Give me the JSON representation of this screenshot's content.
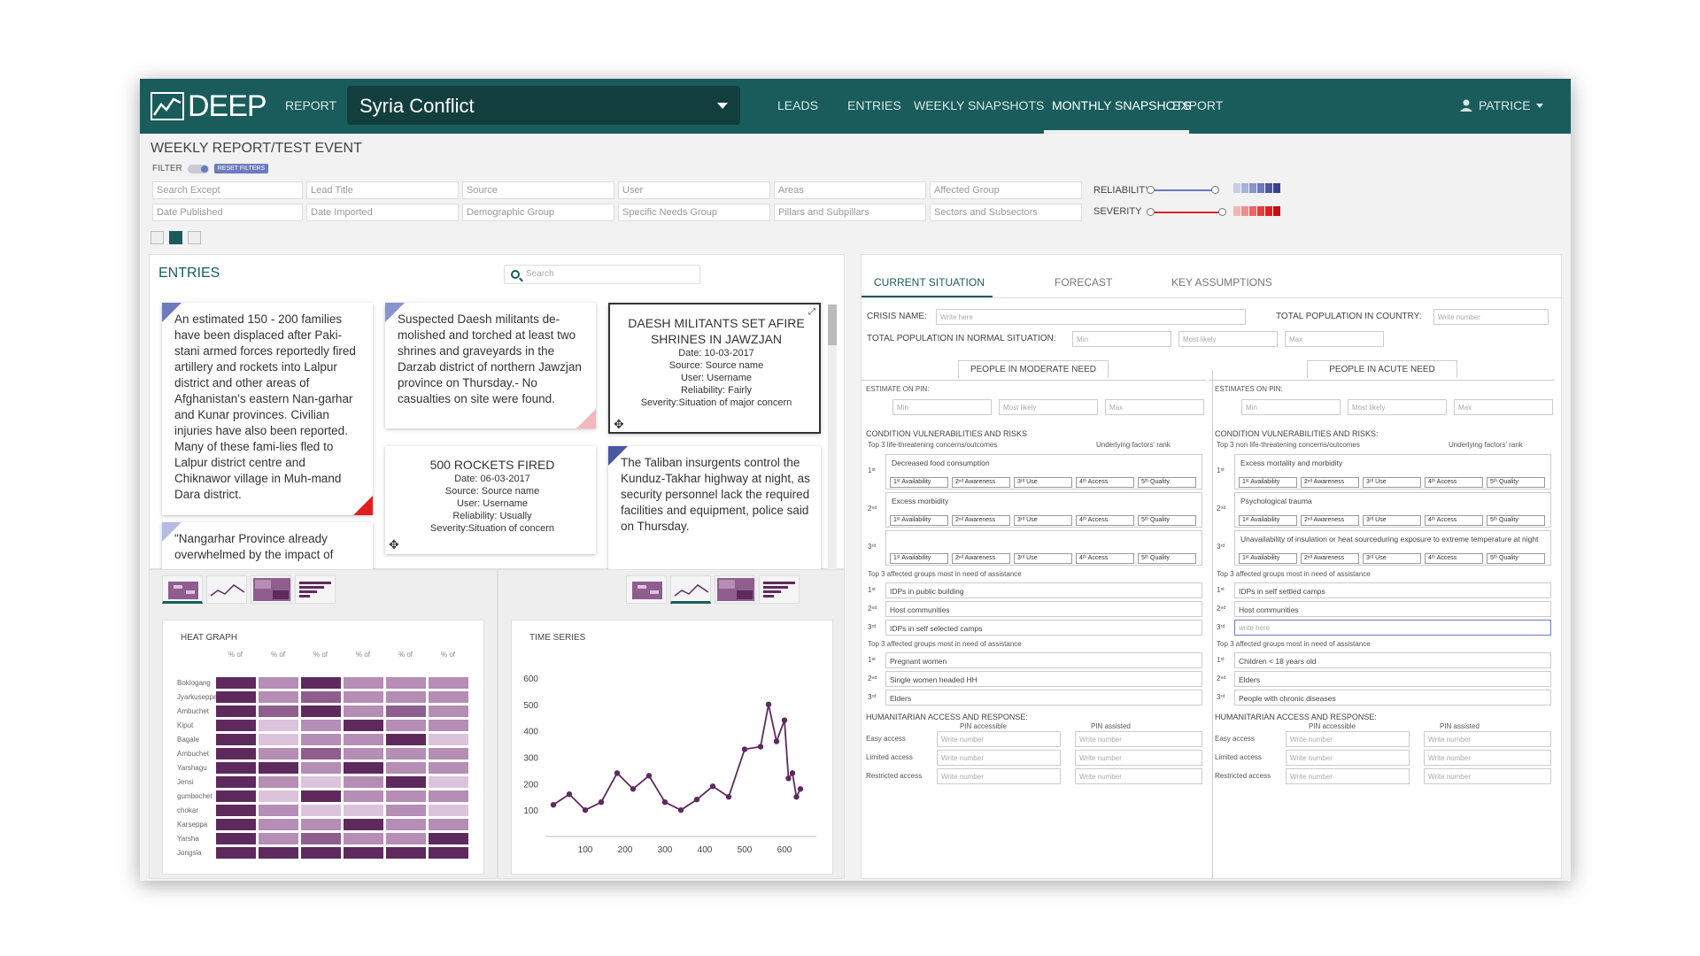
{
  "nav": {
    "logo": "DEEP",
    "report_label": "REPORT",
    "project": "Syria Conflict",
    "links": [
      "LEADS",
      "ENTRIES",
      "WEEKLY SNAPSHOTS",
      "MONTHLY SNAPSHOTS",
      "EXPORT"
    ],
    "active_link": "MONTHLY SNAPSHOTS",
    "user": "PATRICE"
  },
  "breadcrumb": "WEEKLY REPORT/TEST EVENT",
  "filters": {
    "label": "FILTER",
    "reset": "RESET FILTERS",
    "row1": [
      "Search Except",
      "Lead Title",
      "Source",
      "User",
      "Areas",
      "Affected Group"
    ],
    "row2": [
      "Date Published",
      "Date Imported",
      "Demographic Group",
      "Specific Needs Group",
      "Pillars and Subpillars",
      "Sectors and Subsectors"
    ],
    "reliability_label": "RELIABILITY",
    "severity_label": "SEVERITY",
    "reliability_color": "#6b7bbd",
    "severity_color": "#e02020"
  },
  "entries": {
    "title": "ENTRIES",
    "search_placeholder": "Search",
    "cards": [
      "An estimated 150 - 200 families have been displaced after Paki-stani armed forces reportedly fired artillery and rockets into Lalpur district and other areas of Afghanistan's eastern Nan-garhar and Kunar provinces. Civilian injuries have also been reported. Many of these fami-lies fled to Lalpur district centre and Chiknawor village in Muh-mand Dara district.",
      "Suspected Daesh militants de-molished and torched at least two shrines and graveyards in the Darzab district of northern Jawzjan province on Thursday.- No casualties on site were found.",
      "\"Nangarhar Province already overwhelmed by the impact of",
      "The Taliban insurgents control the Kunduz-Takhar highway at night, as security personnel lack the required facilities and equipment, police said on Thursday."
    ],
    "summary_cards": [
      {
        "title": "DAESH MILITANTS SET AFIRE SHRINES IN JAWZJAN",
        "date": "Date: 10-03-2017",
        "source": "Source: Source name",
        "user": "User: Username",
        "reliability": "Reliability: Fairly",
        "severity": "Severity:Situation of major concern"
      },
      {
        "title": "500 ROCKETS FIRED",
        "date": "Date: 06-03-2017",
        "source": "Source: Source name",
        "user": "User: Username",
        "reliability": "Reliability: Usually",
        "severity": "Severity:Situation of concern"
      }
    ]
  },
  "heat_graph": {
    "title": "HEAT GRAPH",
    "col_label": "% of",
    "rows": [
      "Boklogang",
      "Jyarkuseppa",
      "Ambuchet",
      "Kiput",
      "Bagale",
      "Ambuchet",
      "Yarshagu",
      "Jensi",
      "gumbochet",
      "chokar",
      "Karseppa",
      "Yarsha",
      "Jongsia"
    ],
    "levels": [
      [
        4,
        2,
        4,
        2,
        2,
        2
      ],
      [
        4,
        2,
        3,
        2,
        2,
        2
      ],
      [
        4,
        3,
        4,
        2,
        3,
        2
      ],
      [
        4,
        1,
        2,
        4,
        2,
        2
      ],
      [
        4,
        1,
        2,
        2,
        4,
        1
      ],
      [
        4,
        2,
        3,
        2,
        2,
        2
      ],
      [
        4,
        4,
        2,
        4,
        2,
        2
      ],
      [
        4,
        2,
        1,
        2,
        4,
        1
      ],
      [
        4,
        1,
        4,
        2,
        2,
        2
      ],
      [
        4,
        2,
        1,
        1,
        2,
        1
      ],
      [
        4,
        2,
        2,
        4,
        2,
        2
      ],
      [
        4,
        2,
        3,
        2,
        2,
        4
      ],
      [
        4,
        4,
        4,
        4,
        4,
        4
      ]
    ],
    "palette": [
      "#f1e6f1",
      "#dcc3dc",
      "#b58db5",
      "#8f5e8f",
      "#5e2a5e"
    ]
  },
  "chart_data": {
    "type": "line",
    "title": "TIME SERIES",
    "x": [
      20,
      60,
      100,
      140,
      180,
      220,
      260,
      300,
      340,
      380,
      420,
      460,
      500,
      540,
      560,
      580,
      600,
      610,
      620,
      630,
      640
    ],
    "y": [
      120,
      160,
      100,
      130,
      240,
      180,
      230,
      130,
      100,
      140,
      190,
      150,
      330,
      340,
      500,
      360,
      440,
      220,
      240,
      150,
      180
    ],
    "xticks": [
      100,
      200,
      300,
      400,
      500,
      600
    ],
    "yticks": [
      100,
      200,
      300,
      400,
      500,
      600
    ],
    "xlim": [
      0,
      680
    ],
    "ylim": [
      0,
      650
    ],
    "color": "#5e2a5e"
  },
  "form": {
    "tabs": [
      "CURRENT SITUATION",
      "FORECAST",
      "KEY ASSUMPTIONS"
    ],
    "crisis_name_label": "CRISIS NAME:",
    "crisis_name_placeholder": "Write here",
    "total_country_label": "TOTAL POPULATION IN COUNTRY:",
    "total_country_placeholder": "Write number",
    "total_normal_label": "TOTAL POPULATION IN NORMAL SITUATION:",
    "min": "Min",
    "most_likely": "Most likely",
    "max": "Max",
    "write_number": "Write number",
    "write_here": "write here",
    "moderate": {
      "header": "PEOPLE IN MODERATE NEED",
      "estimate_label": "ESTIMATE ON PIN:",
      "cv_label": "CONDITION VULNERABILITIES AND RISKS",
      "cv_sub": "Top 3 life-threatening concerns/outcomes",
      "cv_right": "Underlying factors' rank",
      "concerns": [
        "Decreased food consumption",
        "Excess morbidity",
        ""
      ],
      "groups_label": "Top 3 affected groups most in need of assistance",
      "groups": [
        "IDPs in public building",
        "Host communities",
        "IDPs in self selected camps"
      ],
      "groups2_label": "Top 3 affected groups most in need of assistance",
      "groups2": [
        "Pregnant women",
        "Single women headed HH",
        "Elders"
      ],
      "access_label": "HUMANITARIAN ACCESS AND RESPONSE:"
    },
    "acute": {
      "header": "PEOPLE IN ACUTE NEED",
      "estimate_label": "ESTIMATES ON PIN:",
      "cv_label": "CONDITION VULNERABILITIES AND RISKS:",
      "cv_sub": "Top 3 non life-threatening concerns/outcomes",
      "cv_right": "Underlying factors' rank",
      "concerns": [
        "Excess mortality and morbidity",
        "Psychological trauma",
        "Unavailability of insulation or heat sourceduring exposure to extreme temperature at night"
      ],
      "groups_label": "Top 3 affected groups most in need of assistance",
      "groups": [
        "IDPs in self settled camps",
        "Host communities",
        ""
      ],
      "groups2_label": "Top 3 affected groups most in need of assistance",
      "groups2": [
        "Children < 18 years old",
        "Elders",
        "People with chronic diseases"
      ],
      "access_label": "HUMANITARIAN ACCESS AND RESPONSE:"
    },
    "ranks": [
      "1ˢᵗ",
      "2ⁿᵈ",
      "3ʳᵈ"
    ],
    "chips": [
      "1ˢᵗ Availability",
      "2ⁿᵈ Awareness",
      "3ʳᵈ Use",
      "4ᵗʰ Access",
      "5ᵗʰ Quality"
    ],
    "pin_accessible": "PIN accessible",
    "pin_assisted": "PIN assisted",
    "access_rows": [
      "Easy access",
      "Limited access",
      "Restricted access"
    ]
  }
}
